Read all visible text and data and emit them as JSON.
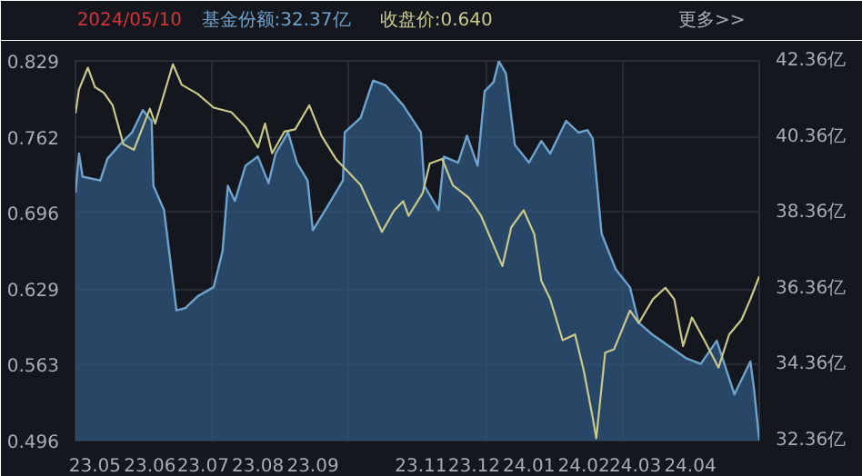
{
  "chart_data": {
    "type": "line",
    "title": "2024/05/10",
    "annotations": [
      "基金份额:32.37亿",
      "收盘价:0.640",
      "更多>>"
    ],
    "xlim": [
      "2023-04-20",
      "2024-05-10"
    ],
    "xticks": [
      {
        "value": "2023-05-01",
        "label": "23.05"
      },
      {
        "value": "2023-06-01",
        "label": "23.06"
      },
      {
        "value": "2023-07-01",
        "label": "23.07"
      },
      {
        "value": "2023-08-01",
        "label": "23.08"
      },
      {
        "value": "2023-09-01",
        "label": "23.09"
      },
      {
        "value": "2023-11-01",
        "label": "23.11"
      },
      {
        "value": "2023-12-01",
        "label": "23.12"
      },
      {
        "value": "2024-01-01",
        "label": "24.01"
      },
      {
        "value": "2024-02-01",
        "label": "24.02"
      },
      {
        "value": "2024-03-01",
        "label": "24.03"
      },
      {
        "value": "2024-04-01",
        "label": "24.04"
      },
      {
        "value": "2023-07-06",
        "label": null
      },
      {
        "value": "2023-09-21",
        "label": null
      },
      {
        "value": "2023-12-08",
        "label": null
      },
      {
        "value": "2024-02-23",
        "label": null
      }
    ],
    "ylim": [
      0.496,
      0.829
    ],
    "yticks": [
      0.496,
      0.563,
      0.629,
      0.696,
      0.762,
      0.829
    ],
    "y2lim": [
      32.36,
      42.36
    ],
    "y2ticks": [
      {
        "value": 32.36,
        "label": "32.36亿"
      },
      {
        "value": 34.36,
        "label": "34.36亿"
      },
      {
        "value": 36.36,
        "label": "36.36亿"
      },
      {
        "value": 38.36,
        "label": "38.36亿"
      },
      {
        "value": 40.36,
        "label": "40.36亿"
      },
      {
        "value": 42.36,
        "label": "42.36亿"
      }
    ],
    "grid": true,
    "line_style": "solid",
    "marker": "none",
    "series": [
      {
        "type": "area",
        "axis": "y2",
        "color": "#6fa3cc",
        "x": [
          "2023-04-20",
          "2023-04-22",
          "2023-04-24",
          "2023-05-04",
          "2023-05-08",
          "2023-05-15",
          "2023-05-22",
          "2023-05-28",
          "2023-06-02",
          "2023-06-03",
          "2023-06-09",
          "2023-06-16",
          "2023-06-21",
          "2023-06-28",
          "2023-07-07",
          "2023-07-12",
          "2023-07-15",
          "2023-07-19",
          "2023-07-25",
          "2023-08-01",
          "2023-08-07",
          "2023-08-11",
          "2023-08-18",
          "2023-08-23",
          "2023-08-29",
          "2023-09-01",
          "2023-09-08",
          "2023-09-18",
          "2023-09-19",
          "2023-09-28",
          "2023-10-05",
          "2023-10-12",
          "2023-10-22",
          "2023-11-01",
          "2023-11-03",
          "2023-11-11",
          "2023-11-14",
          "2023-11-22",
          "2023-11-27",
          "2023-12-03",
          "2023-12-07",
          "2023-12-12",
          "2023-12-15",
          "2023-12-19",
          "2023-12-24",
          "2024-01-01",
          "2024-01-08",
          "2024-01-13",
          "2024-01-22",
          "2024-01-29",
          "2024-02-03",
          "2024-02-06",
          "2024-02-11",
          "2024-02-19",
          "2024-02-27",
          "2024-03-03",
          "2024-03-11",
          "2024-03-20",
          "2024-03-30",
          "2024-04-07",
          "2024-04-16",
          "2024-04-26",
          "2024-05-05",
          "2024-05-07",
          "2024-05-10"
        ],
        "values": [
          38.89,
          39.92,
          39.31,
          39.21,
          39.78,
          40.15,
          40.48,
          41.06,
          40.78,
          39.07,
          38.43,
          35.79,
          35.85,
          36.16,
          36.4,
          37.34,
          39.07,
          38.67,
          39.6,
          39.84,
          39.14,
          39.92,
          40.48,
          39.68,
          39.21,
          37.9,
          38.43,
          39.21,
          40.48,
          40.86,
          41.84,
          41.72,
          41.19,
          40.48,
          39.07,
          38.43,
          39.84,
          39.68,
          40.39,
          39.6,
          41.56,
          41.8,
          42.35,
          42.03,
          40.15,
          39.68,
          40.25,
          39.92,
          40.78,
          40.47,
          40.54,
          40.31,
          37.81,
          36.87,
          36.4,
          35.46,
          35.14,
          34.85,
          34.52,
          34.38,
          34.99,
          33.58,
          34.44,
          33.74,
          32.37
        ]
      },
      {
        "axis": "y",
        "color": "#c9c98c",
        "x": [
          "2023-04-20",
          "2023-04-22",
          "2023-04-27",
          "2023-05-01",
          "2023-05-06",
          "2023-05-11",
          "2023-05-17",
          "2023-05-23",
          "2023-05-28",
          "2023-06-01",
          "2023-06-04",
          "2023-06-14",
          "2023-06-19",
          "2023-06-28",
          "2023-07-07",
          "2023-07-17",
          "2023-07-25",
          "2023-08-01",
          "2023-08-05",
          "2023-08-09",
          "2023-08-16",
          "2023-08-22",
          "2023-08-30",
          "2023-09-06",
          "2023-09-14",
          "2023-09-28",
          "2023-10-10",
          "2023-10-17",
          "2023-10-22",
          "2023-10-25",
          "2023-11-02",
          "2023-11-06",
          "2023-11-13",
          "2023-11-19",
          "2023-11-28",
          "2023-12-05",
          "2023-12-17",
          "2023-12-22",
          "2023-12-29",
          "2024-01-04",
          "2024-01-08",
          "2024-01-13",
          "2024-01-20",
          "2024-01-27",
          "2024-02-01",
          "2024-02-06",
          "2024-02-08",
          "2024-02-13",
          "2024-02-18",
          "2024-02-27",
          "2024-03-03",
          "2024-03-11",
          "2024-03-18",
          "2024-03-23",
          "2024-03-28",
          "2024-04-02",
          "2024-04-09",
          "2024-04-17",
          "2024-04-23",
          "2024-04-30",
          "2024-05-05",
          "2024-05-10"
        ],
        "values": [
          0.783,
          0.804,
          0.823,
          0.806,
          0.801,
          0.79,
          0.756,
          0.751,
          0.771,
          0.787,
          0.774,
          0.826,
          0.808,
          0.8,
          0.788,
          0.784,
          0.771,
          0.753,
          0.774,
          0.748,
          0.767,
          0.769,
          0.79,
          0.763,
          0.743,
          0.72,
          0.679,
          0.698,
          0.706,
          0.693,
          0.713,
          0.739,
          0.743,
          0.72,
          0.709,
          0.693,
          0.649,
          0.683,
          0.698,
          0.677,
          0.636,
          0.62,
          0.584,
          0.589,
          0.557,
          0.516,
          0.498,
          0.573,
          0.576,
          0.61,
          0.599,
          0.62,
          0.63,
          0.62,
          0.579,
          0.604,
          0.584,
          0.56,
          0.589,
          0.602,
          0.62,
          0.64
        ]
      }
    ]
  }
}
